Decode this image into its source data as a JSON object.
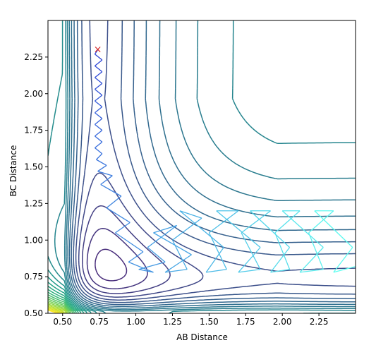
{
  "chart_data": {
    "type": "contour",
    "xlabel": "AB Distance",
    "ylabel": "BC Distance",
    "xlim": [
      0.4,
      2.5
    ],
    "ylim": [
      0.5,
      2.5
    ],
    "x_ticks": [
      "0.50",
      "0.75",
      "1.00",
      "1.25",
      "1.50",
      "1.75",
      "2.00",
      "2.25"
    ],
    "y_ticks": [
      "0.50",
      "0.75",
      "1.00",
      "1.25",
      "1.50",
      "1.75",
      "2.00",
      "2.25"
    ],
    "colormap": "viridis",
    "start_marker": {
      "symbol": "×",
      "x": 0.74,
      "y": 2.3,
      "color": "#d62728"
    },
    "trajectory": {
      "color_start": "#2b3fd6",
      "color_end": "#5ffff0",
      "points": [
        [
          0.74,
          2.3
        ],
        [
          0.72,
          2.27
        ],
        [
          0.77,
          2.23
        ],
        [
          0.72,
          2.19
        ],
        [
          0.77,
          2.15
        ],
        [
          0.72,
          2.11
        ],
        [
          0.77,
          2.07
        ],
        [
          0.72,
          2.03
        ],
        [
          0.77,
          1.99
        ],
        [
          0.72,
          1.95
        ],
        [
          0.77,
          1.91
        ],
        [
          0.72,
          1.87
        ],
        [
          0.77,
          1.83
        ],
        [
          0.72,
          1.79
        ],
        [
          0.77,
          1.75
        ],
        [
          0.72,
          1.71
        ],
        [
          0.77,
          1.67
        ],
        [
          0.72,
          1.63
        ],
        [
          0.77,
          1.59
        ],
        [
          0.73,
          1.55
        ],
        [
          0.8,
          1.51
        ],
        [
          0.74,
          1.47
        ],
        [
          0.84,
          1.44
        ],
        [
          0.76,
          1.38
        ],
        [
          0.9,
          1.3
        ],
        [
          0.8,
          1.22
        ],
        [
          0.96,
          1.12
        ],
        [
          0.86,
          1.05
        ],
        [
          1.05,
          0.92
        ],
        [
          0.95,
          0.85
        ],
        [
          1.12,
          0.78
        ],
        [
          1.02,
          0.8
        ],
        [
          1.2,
          0.85
        ],
        [
          1.08,
          0.95
        ],
        [
          1.28,
          1.1
        ],
        [
          1.12,
          1.05
        ],
        [
          1.38,
          0.9
        ],
        [
          1.2,
          0.78
        ],
        [
          1.35,
          0.8
        ],
        [
          1.25,
          1.0
        ],
        [
          1.45,
          1.15
        ],
        [
          1.3,
          1.2
        ],
        [
          1.6,
          0.95
        ],
        [
          1.48,
          0.78
        ],
        [
          1.62,
          0.8
        ],
        [
          1.5,
          1.05
        ],
        [
          1.7,
          1.2
        ],
        [
          1.55,
          1.2
        ],
        [
          1.85,
          0.95
        ],
        [
          1.7,
          0.78
        ],
        [
          1.85,
          0.8
        ],
        [
          1.72,
          1.05
        ],
        [
          1.92,
          1.2
        ],
        [
          1.78,
          1.2
        ],
        [
          2.05,
          0.95
        ],
        [
          1.92,
          0.78
        ],
        [
          2.05,
          0.8
        ],
        [
          1.95,
          1.05
        ],
        [
          2.12,
          1.2
        ],
        [
          2.0,
          1.2
        ],
        [
          2.28,
          0.95
        ],
        [
          2.12,
          0.78
        ],
        [
          2.28,
          0.8
        ],
        [
          2.18,
          1.05
        ],
        [
          2.35,
          1.2
        ],
        [
          2.22,
          1.2
        ],
        [
          2.48,
          0.95
        ],
        [
          2.35,
          0.78
        ],
        [
          2.5,
          0.82
        ]
      ]
    }
  }
}
